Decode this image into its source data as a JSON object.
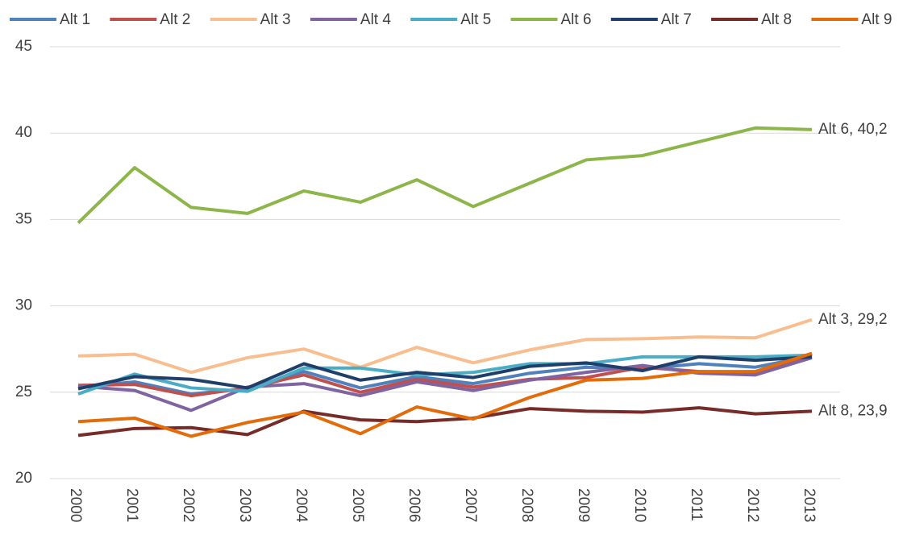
{
  "chart_data": {
    "type": "line",
    "categories": [
      "2000",
      "2001",
      "2002",
      "2003",
      "2004",
      "2005",
      "2006",
      "2007",
      "2008",
      "2009",
      "2010",
      "2011",
      "2012",
      "2013"
    ],
    "series": [
      {
        "name": "Alt 1",
        "color": "#4f81bd",
        "values": [
          25.3,
          25.6,
          24.9,
          25.2,
          26.2,
          25.25,
          25.9,
          25.5,
          26.1,
          26.45,
          26.35,
          26.65,
          26.45,
          27.1
        ]
      },
      {
        "name": "Alt 2",
        "color": "#c0504d",
        "values": [
          25.4,
          25.45,
          24.8,
          25.25,
          26.0,
          25.0,
          25.75,
          25.3,
          25.75,
          25.85,
          26.45,
          26.2,
          26.1,
          27.2
        ]
      },
      {
        "name": "Alt 3",
        "color": "#f9be8f",
        "values": [
          27.1,
          27.2,
          26.15,
          27.0,
          27.5,
          26.45,
          27.6,
          26.7,
          27.45,
          28.05,
          28.1,
          28.2,
          28.15,
          29.2
        ],
        "value_labels": [
          null,
          null,
          null,
          null,
          null,
          null,
          null,
          null,
          null,
          null,
          null,
          null,
          null,
          "Alt 3, 29,2"
        ]
      },
      {
        "name": "Alt 4",
        "color": "#8064a2",
        "values": [
          25.35,
          25.1,
          23.95,
          25.3,
          25.5,
          24.8,
          25.6,
          25.1,
          25.7,
          26.15,
          26.55,
          26.1,
          26.0,
          27.0
        ]
      },
      {
        "name": "Alt 5",
        "color": "#4bacc6",
        "values": [
          24.9,
          26.05,
          25.25,
          25.05,
          26.4,
          26.4,
          26.0,
          26.15,
          26.65,
          26.65,
          27.05,
          27.05,
          27.05,
          27.15
        ]
      },
      {
        "name": "Alt 6",
        "color": "#8db64a",
        "values": [
          34.8,
          38.0,
          35.7,
          35.35,
          36.65,
          36.0,
          37.3,
          35.75,
          37.1,
          38.45,
          38.7,
          39.5,
          40.3,
          40.2
        ],
        "value_labels": [
          null,
          null,
          null,
          null,
          null,
          null,
          null,
          null,
          null,
          null,
          null,
          null,
          null,
          "Alt 6, 40,2"
        ]
      },
      {
        "name": "Alt 7",
        "color": "#1f3f6a",
        "values": [
          25.2,
          25.9,
          25.75,
          25.25,
          26.65,
          25.7,
          26.15,
          25.85,
          26.5,
          26.7,
          26.25,
          27.05,
          26.85,
          27.05
        ]
      },
      {
        "name": "Alt 8",
        "color": "#772c2a",
        "values": [
          22.5,
          22.9,
          22.95,
          22.55,
          23.9,
          23.4,
          23.3,
          23.5,
          24.05,
          23.9,
          23.85,
          24.1,
          23.75,
          23.9
        ],
        "value_labels": [
          null,
          null,
          null,
          null,
          null,
          null,
          null,
          null,
          null,
          null,
          null,
          null,
          null,
          "Alt 8, 23,9"
        ]
      },
      {
        "name": "Alt 9",
        "color": "#e36c0a",
        "values": [
          23.3,
          23.5,
          22.45,
          23.25,
          23.85,
          22.6,
          24.15,
          23.45,
          24.7,
          25.7,
          25.8,
          26.2,
          26.2,
          27.25
        ]
      }
    ],
    "ylim": [
      20,
      45
    ],
    "yticks": [
      20,
      25,
      30,
      35,
      40,
      45
    ],
    "grid": true,
    "legend": "top"
  }
}
